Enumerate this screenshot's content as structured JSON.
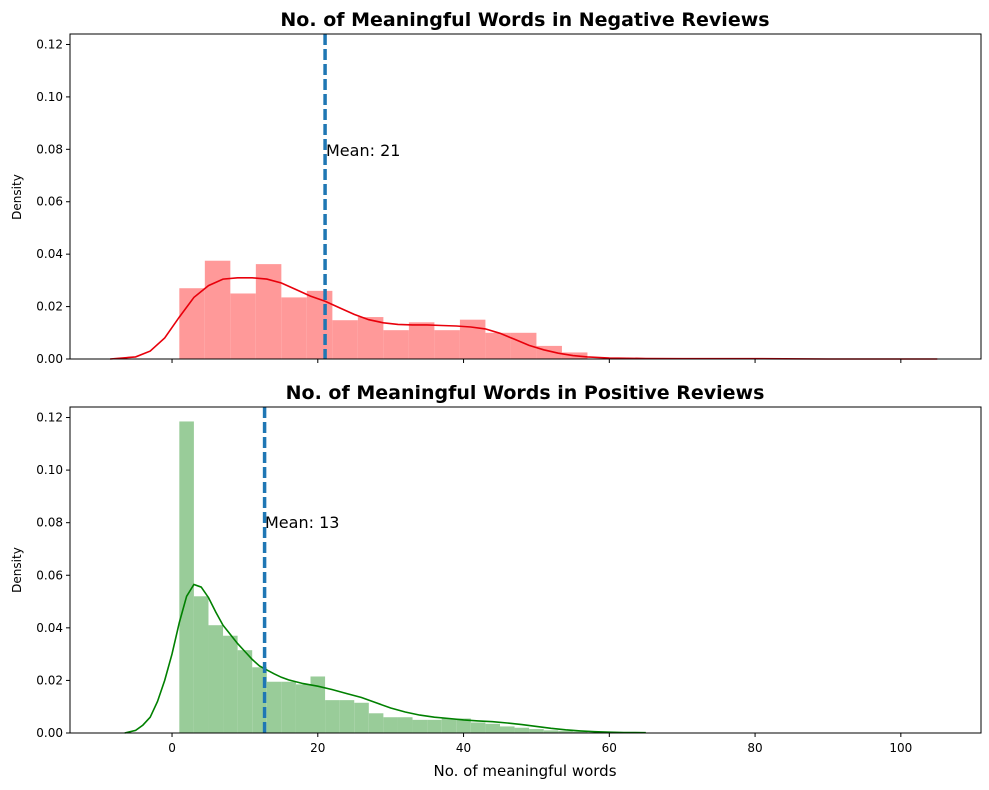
{
  "chart_data": [
    {
      "type": "histogram",
      "title": "No. of Meaningful Words in Negative Reviews",
      "xlabel": "",
      "ylabel": "Density",
      "xlim": [
        -14,
        111
      ],
      "ylim": [
        0,
        0.124
      ],
      "xticks": [
        0,
        20,
        40,
        60,
        80,
        100
      ],
      "show_xtick_labels": false,
      "yticks": [
        0.0,
        0.02,
        0.04,
        0.06,
        0.08,
        0.1,
        0.12
      ],
      "grid": false,
      "colors": {
        "bars": "#ff9999",
        "kde": "#e8000b",
        "mean_line": "#1f77b4"
      },
      "bins": [
        {
          "x0": 1,
          "x1": 4.5,
          "value": 0.027
        },
        {
          "x0": 4.5,
          "x1": 8,
          "value": 0.0375
        },
        {
          "x0": 8,
          "x1": 11.5,
          "value": 0.025
        },
        {
          "x0": 11.5,
          "x1": 15,
          "value": 0.0362
        },
        {
          "x0": 15,
          "x1": 18.5,
          "value": 0.0235
        },
        {
          "x0": 18.5,
          "x1": 22,
          "value": 0.026
        },
        {
          "x0": 22,
          "x1": 25.5,
          "value": 0.0148
        },
        {
          "x0": 25.5,
          "x1": 29,
          "value": 0.016
        },
        {
          "x0": 29,
          "x1": 32.5,
          "value": 0.011
        },
        {
          "x0": 32.5,
          "x1": 36,
          "value": 0.014
        },
        {
          "x0": 36,
          "x1": 39.5,
          "value": 0.011
        },
        {
          "x0": 39.5,
          "x1": 43,
          "value": 0.015
        },
        {
          "x0": 43,
          "x1": 46.5,
          "value": 0.01
        },
        {
          "x0": 46.5,
          "x1": 50,
          "value": 0.01
        },
        {
          "x0": 50,
          "x1": 53.5,
          "value": 0.005
        },
        {
          "x0": 53.5,
          "x1": 57,
          "value": 0.0025
        }
      ],
      "kde": {
        "x": [
          -8.5,
          -5,
          -3,
          -1,
          1,
          3,
          5,
          7,
          9,
          11,
          13,
          15,
          17,
          19,
          21,
          23,
          25,
          27,
          29,
          31,
          33,
          35,
          37,
          39,
          41,
          43,
          45,
          47,
          49,
          51,
          53,
          55,
          57,
          60,
          65,
          70,
          80,
          90,
          105
        ],
        "y": [
          0,
          0.0008,
          0.003,
          0.008,
          0.016,
          0.0235,
          0.028,
          0.0305,
          0.031,
          0.031,
          0.0305,
          0.029,
          0.0265,
          0.024,
          0.022,
          0.0195,
          0.017,
          0.015,
          0.0138,
          0.0132,
          0.013,
          0.013,
          0.0128,
          0.0126,
          0.0122,
          0.0115,
          0.0098,
          0.0075,
          0.0052,
          0.0035,
          0.0022,
          0.0013,
          0.0008,
          0.0004,
          0.0002,
          0.0001,
          0.0001,
          0.0,
          0.0
        ]
      },
      "mean": 21,
      "mean_label": "Mean: 21"
    },
    {
      "type": "histogram",
      "title": "No. of Meaningful Words in Positive Reviews",
      "xlabel": "No. of meaningful words",
      "ylabel": "Density",
      "xlim": [
        -14,
        111
      ],
      "ylim": [
        0,
        0.124
      ],
      "xticks": [
        0,
        20,
        40,
        60,
        80,
        100
      ],
      "show_xtick_labels": true,
      "yticks": [
        0.0,
        0.02,
        0.04,
        0.06,
        0.08,
        0.1,
        0.12
      ],
      "grid": false,
      "colors": {
        "bars": "#99cc99",
        "kde": "#008000",
        "mean_line": "#1f77b4"
      },
      "bins": [
        {
          "x0": 1,
          "x1": 3,
          "value": 0.1185
        },
        {
          "x0": 3,
          "x1": 5,
          "value": 0.052
        },
        {
          "x0": 5,
          "x1": 7,
          "value": 0.041
        },
        {
          "x0": 7,
          "x1": 9,
          "value": 0.037
        },
        {
          "x0": 9,
          "x1": 11,
          "value": 0.0315
        },
        {
          "x0": 11,
          "x1": 13,
          "value": 0.025
        },
        {
          "x0": 13,
          "x1": 15,
          "value": 0.0195
        },
        {
          "x0": 15,
          "x1": 17,
          "value": 0.0195
        },
        {
          "x0": 17,
          "x1": 19,
          "value": 0.0185
        },
        {
          "x0": 19,
          "x1": 21,
          "value": 0.0215
        },
        {
          "x0": 21,
          "x1": 23,
          "value": 0.0125
        },
        {
          "x0": 23,
          "x1": 25,
          "value": 0.0125
        },
        {
          "x0": 25,
          "x1": 27,
          "value": 0.0115
        },
        {
          "x0": 27,
          "x1": 29,
          "value": 0.0075
        },
        {
          "x0": 29,
          "x1": 31,
          "value": 0.006
        },
        {
          "x0": 31,
          "x1": 33,
          "value": 0.006
        },
        {
          "x0": 33,
          "x1": 35,
          "value": 0.005
        },
        {
          "x0": 35,
          "x1": 37,
          "value": 0.005
        },
        {
          "x0": 37,
          "x1": 39,
          "value": 0.0055
        },
        {
          "x0": 39,
          "x1": 41,
          "value": 0.0055
        },
        {
          "x0": 41,
          "x1": 43,
          "value": 0.004
        },
        {
          "x0": 43,
          "x1": 45,
          "value": 0.0035
        },
        {
          "x0": 45,
          "x1": 47,
          "value": 0.0025
        },
        {
          "x0": 47,
          "x1": 49,
          "value": 0.002
        },
        {
          "x0": 49,
          "x1": 51,
          "value": 0.0015
        },
        {
          "x0": 51,
          "x1": 53,
          "value": 0.001
        },
        {
          "x0": 53,
          "x1": 55,
          "value": 0.0008
        },
        {
          "x0": 55,
          "x1": 57,
          "value": 0.0005
        }
      ],
      "kde": {
        "x": [
          -6.5,
          -5,
          -4,
          -3,
          -2,
          -1,
          0,
          1,
          2,
          3,
          4,
          5,
          6,
          7,
          8,
          9,
          10,
          11,
          12,
          13,
          14,
          15,
          16,
          18,
          20,
          22,
          24,
          26,
          28,
          30,
          32,
          34,
          36,
          38,
          40,
          42,
          44,
          46,
          48,
          50,
          52,
          54,
          56,
          58,
          60,
          62,
          65
        ],
        "y": [
          0,
          0.001,
          0.003,
          0.006,
          0.012,
          0.02,
          0.03,
          0.042,
          0.052,
          0.0565,
          0.0555,
          0.0515,
          0.046,
          0.041,
          0.0375,
          0.034,
          0.031,
          0.028,
          0.0255,
          0.024,
          0.0225,
          0.0212,
          0.0202,
          0.0188,
          0.0178,
          0.0165,
          0.015,
          0.0135,
          0.0115,
          0.0095,
          0.008,
          0.0068,
          0.006,
          0.0055,
          0.005,
          0.0046,
          0.0043,
          0.0038,
          0.0032,
          0.0025,
          0.0018,
          0.0012,
          0.0008,
          0.0005,
          0.0003,
          0.0002,
          0.0001
        ]
      },
      "mean": 12.7,
      "mean_label": "Mean: 13"
    }
  ]
}
